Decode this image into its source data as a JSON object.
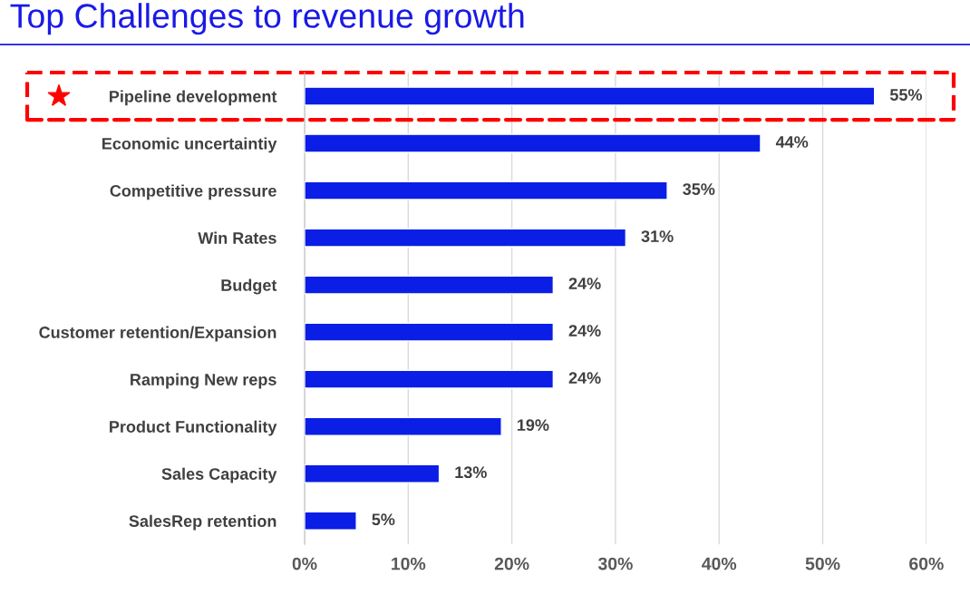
{
  "chart_data": {
    "type": "bar",
    "orientation": "horizontal",
    "title": "Top Challenges to revenue growth",
    "categories": [
      "Pipeline development",
      "Economic uncertaintiy",
      "Competitive pressure",
      "Win Rates",
      "Budget",
      "Customer retention/Expansion",
      "Ramping New reps",
      "Product Functionality",
      "Sales Capacity",
      "SalesRep retention"
    ],
    "values": [
      55,
      44,
      35,
      31,
      24,
      24,
      24,
      19,
      13,
      5
    ],
    "value_labels": [
      "55%",
      "44%",
      "35%",
      "31%",
      "24%",
      "24%",
      "24%",
      "19%",
      "13%",
      "5%"
    ],
    "color": "#0a1ee6",
    "xlim": [
      0,
      60
    ],
    "xticks": [
      {
        "value": 0,
        "label": "0%"
      },
      {
        "value": 10,
        "label": "10%"
      },
      {
        "value": 20,
        "label": "20%"
      },
      {
        "value": 30,
        "label": "30%"
      },
      {
        "value": 40,
        "label": "40%"
      },
      {
        "value": 50,
        "label": "50%"
      },
      {
        "value": 60,
        "label": "60%"
      }
    ],
    "grid": "x",
    "legend": false
  }
}
